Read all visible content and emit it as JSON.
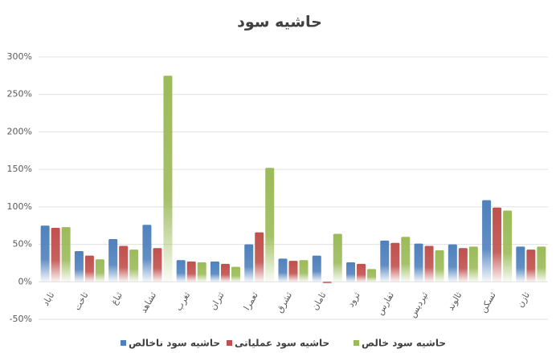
{
  "chart_data": {
    "type": "bar",
    "title": "حاشیه سود",
    "categories": [
      "ثاباد",
      "ثاخت",
      "ثباغ",
      "ثشاهد",
      "ثغرب",
      "ثتران",
      "ثعمرا",
      "ثشرق",
      "ثامان",
      "ثرود",
      "ثفارس",
      "ثپردیس",
      "ثالوند",
      "ثسکن",
      "ثازن"
    ],
    "series": [
      {
        "name": "حاشیه سود ناخالص",
        "color": "#4f81bd",
        "values": [
          75,
          41,
          57,
          76,
          29,
          27,
          50,
          31,
          35,
          26,
          55,
          51,
          50,
          109,
          47
        ]
      },
      {
        "name": "حاشیه سود عملیاتی",
        "color": "#c0504d",
        "values": [
          72,
          35,
          48,
          45,
          27,
          24,
          66,
          28,
          -2,
          24,
          52,
          48,
          45,
          99,
          43
        ]
      },
      {
        "name": "حاشیه سود خالص",
        "color": "#9bbb59",
        "values": [
          73,
          30,
          43,
          275,
          26,
          20,
          152,
          29,
          64,
          17,
          60,
          42,
          47,
          95,
          47
        ]
      }
    ],
    "ylim": [
      -50,
      300
    ],
    "yticks": [
      {
        "value": -50,
        "label": "-50%"
      },
      {
        "value": 0,
        "label": "0%"
      },
      {
        "value": 50,
        "label": "50%"
      },
      {
        "value": 100,
        "label": "100%"
      },
      {
        "value": 150,
        "label": "150%"
      },
      {
        "value": 200,
        "label": "200%"
      },
      {
        "value": 250,
        "label": "250%"
      },
      {
        "value": 300,
        "label": "300%"
      }
    ],
    "grid": true
  }
}
